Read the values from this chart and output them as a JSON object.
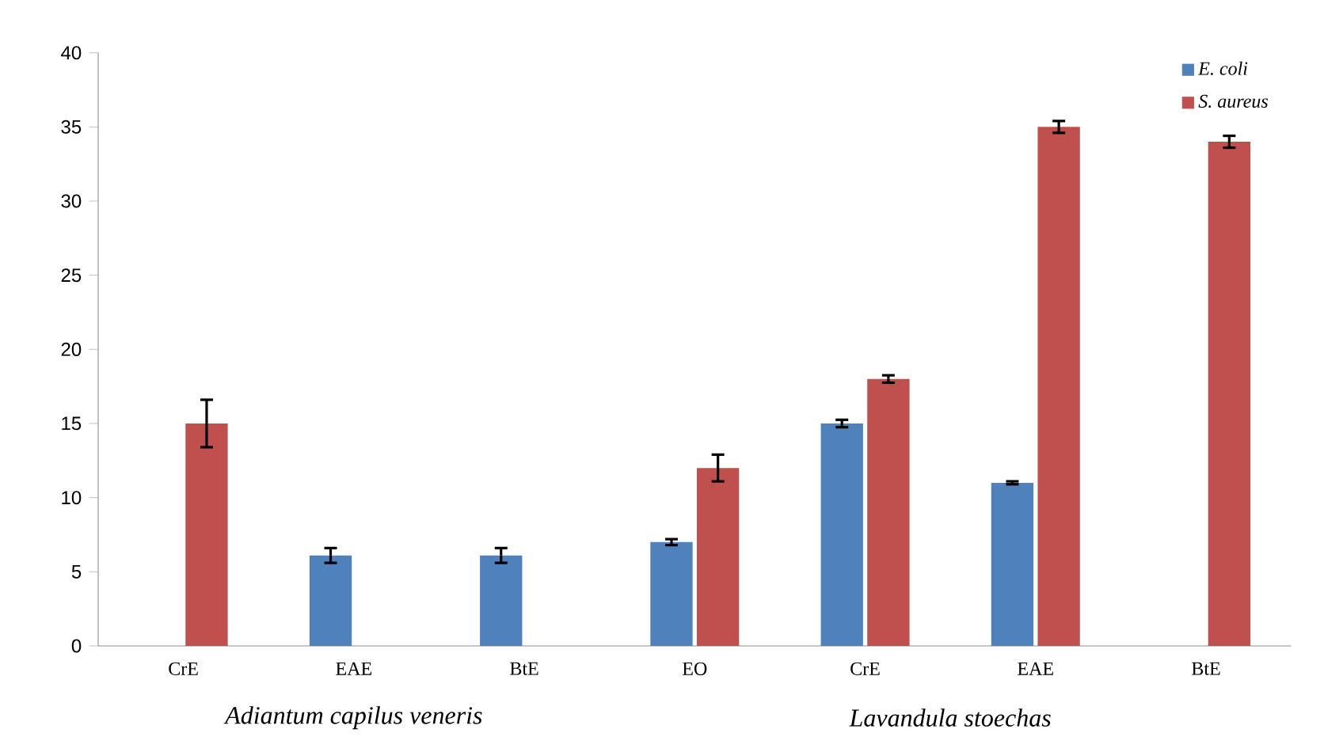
{
  "chart_data": {
    "type": "bar",
    "categories": [
      "CrE",
      "EAE",
      "BtE",
      "EO",
      "CrE",
      "EAE",
      "BtE"
    ],
    "series": [
      {
        "name": "E. coli",
        "color": "#4f81bd",
        "values": [
          null,
          6.1,
          6.1,
          7,
          15,
          11,
          null
        ],
        "errors": [
          null,
          0.5,
          0.5,
          0.2,
          0.25,
          0.1,
          null
        ]
      },
      {
        "name": "S. aureus",
        "color": "#c0504d",
        "values": [
          15,
          null,
          null,
          12,
          18,
          35,
          34
        ],
        "errors": [
          1.6,
          null,
          null,
          0.9,
          0.25,
          0.4,
          0.4
        ]
      }
    ],
    "ylim": [
      0,
      40
    ],
    "yticks": [
      0,
      5,
      10,
      15,
      20,
      25,
      30,
      35,
      40
    ],
    "legend": "top right",
    "annotations": [
      "Adiantum capilus veneris",
      "Lavandula stoechas"
    ]
  }
}
